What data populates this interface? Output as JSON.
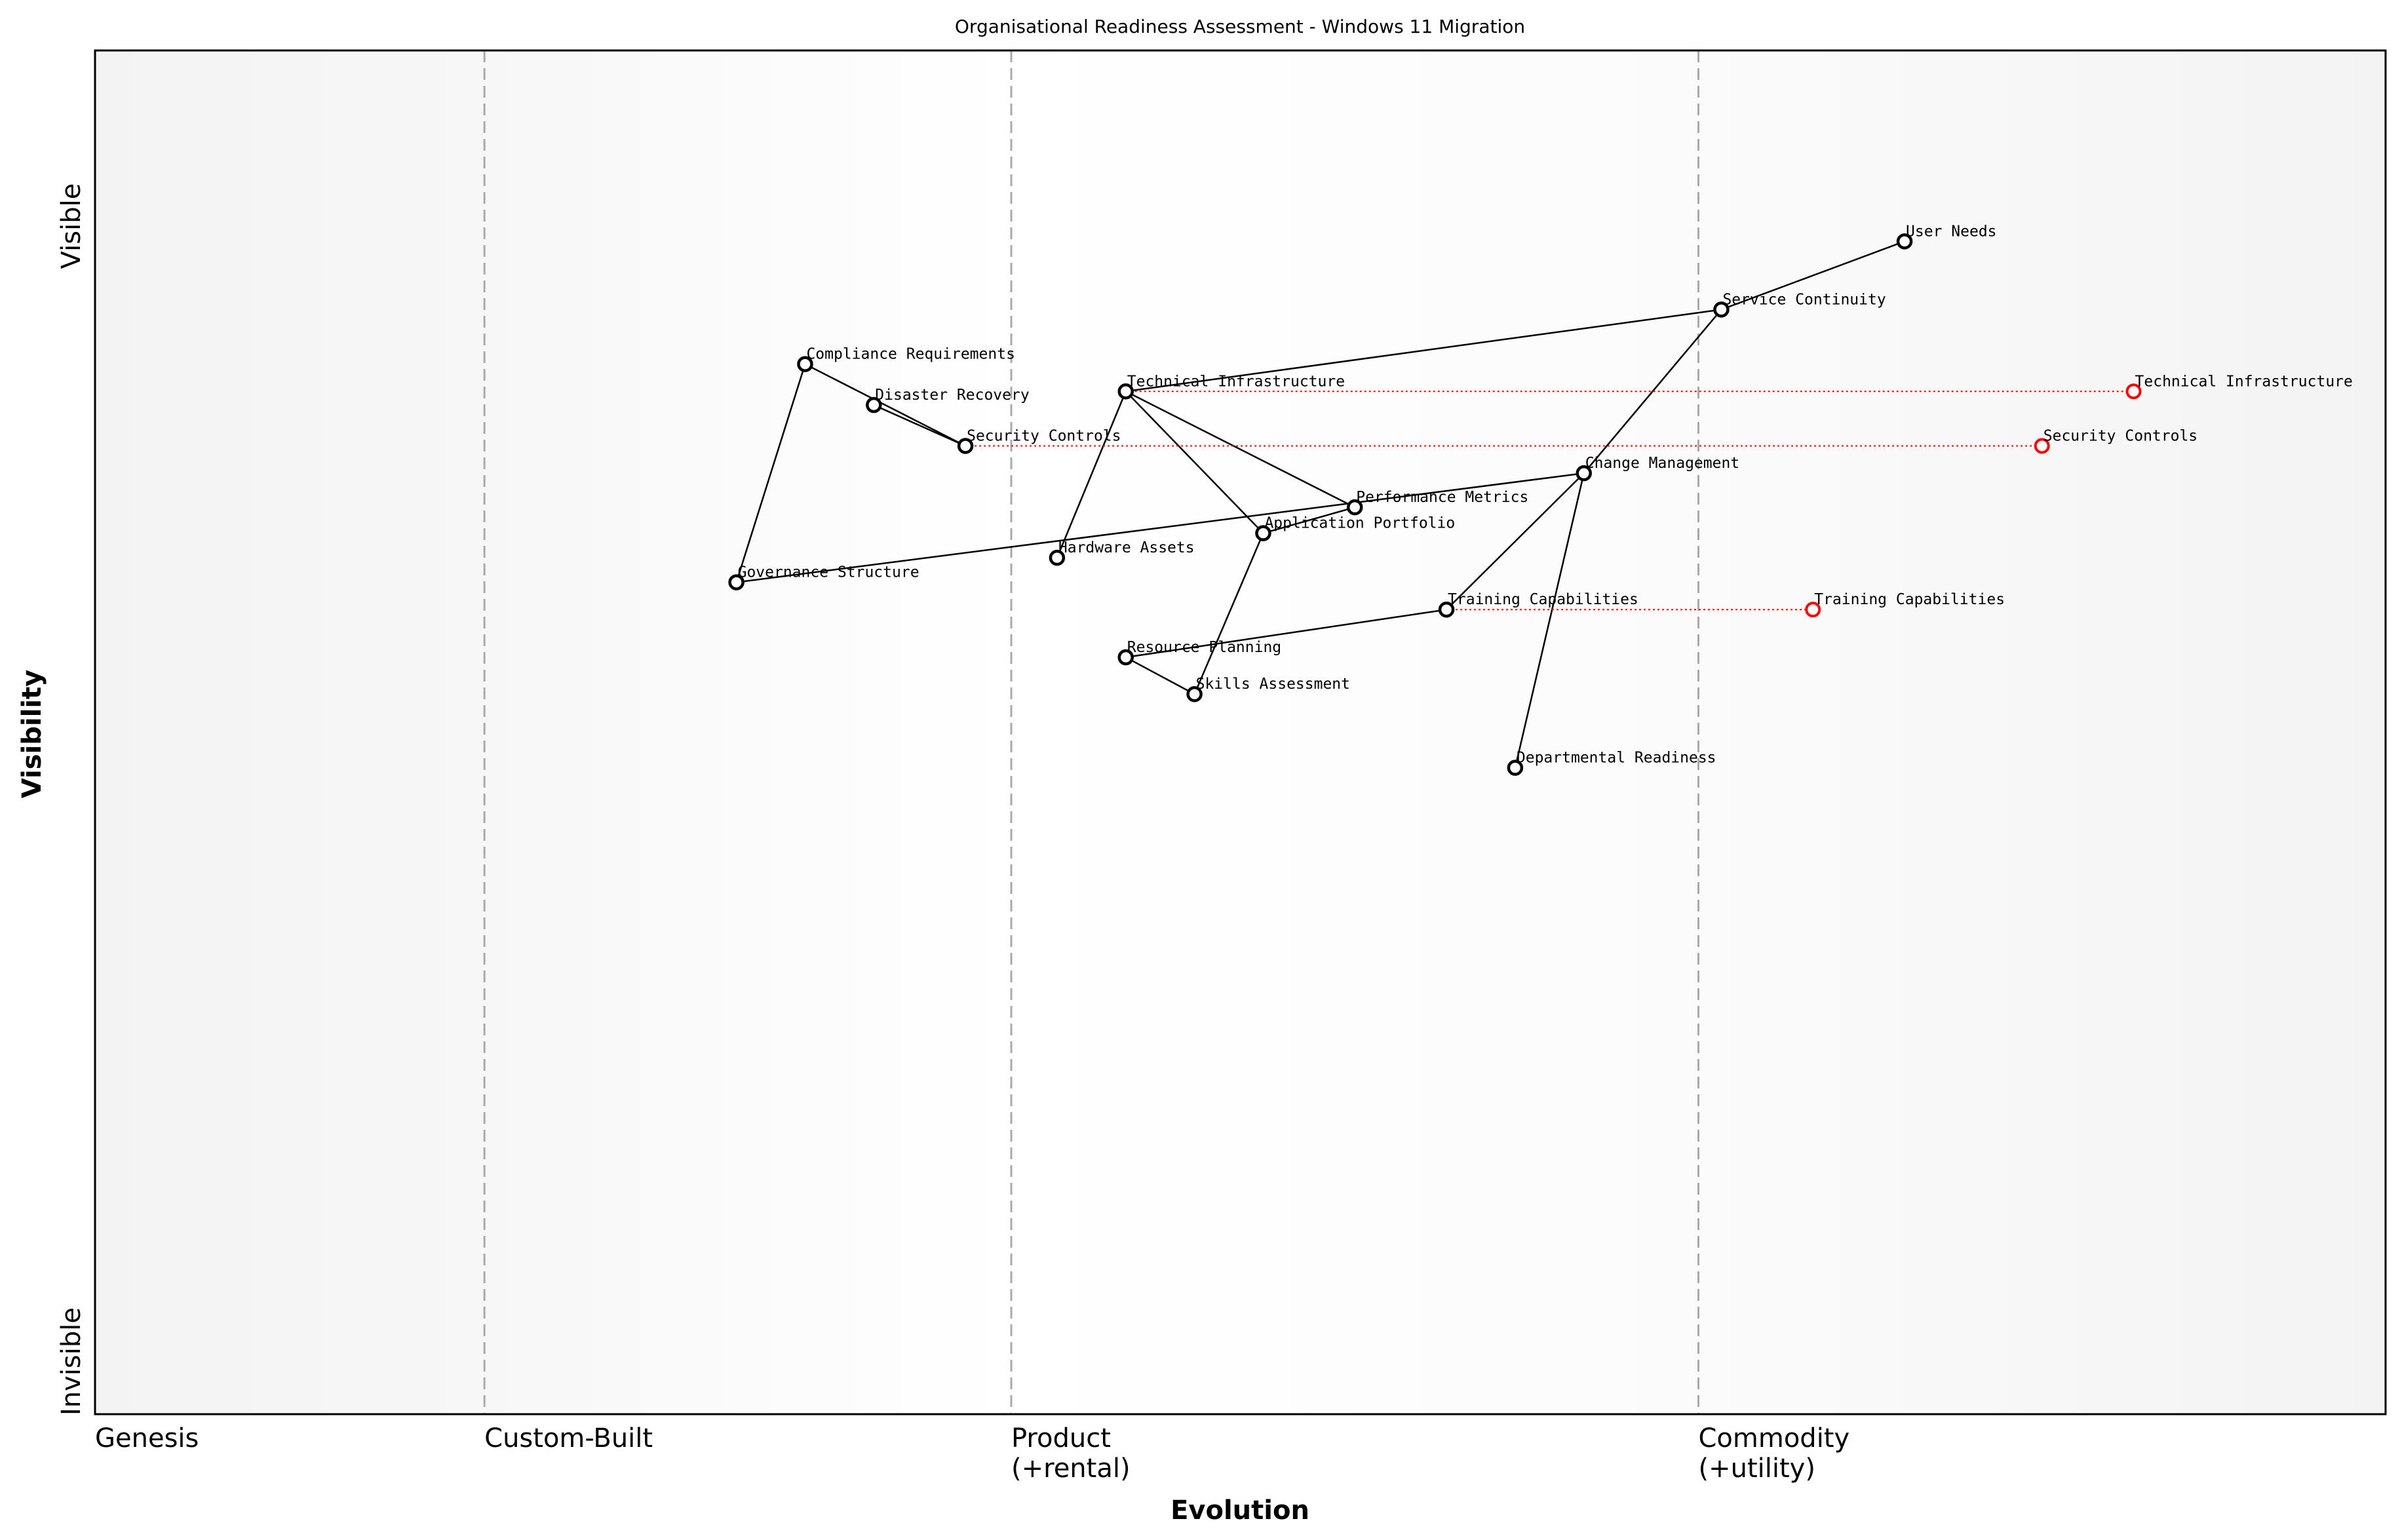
{
  "title": "Organisational Readiness Assessment - Windows 11 Migration",
  "x_axis": {
    "label": "Evolution",
    "stages": [
      {
        "name": "Genesis",
        "at": 0
      },
      {
        "name": "Custom-Built",
        "at": 0.17
      },
      {
        "name": "Product\n(+rental)",
        "at": 0.4
      },
      {
        "name": "Commodity\n(+utility)",
        "at": 0.7
      }
    ]
  },
  "y_axis": {
    "label": "Visibility",
    "top": "Visible",
    "bottom": "Invisible"
  },
  "colors": {
    "component": "#000000",
    "evolved": "#ff0000",
    "stage_line": "#aaaaaa",
    "band": "#f5f5f5"
  },
  "components": [
    {
      "name": "User Needs",
      "evolution": 0.79,
      "visibility": 0.86
    },
    {
      "name": "Service Continuity",
      "evolution": 0.71,
      "visibility": 0.81
    },
    {
      "name": "Compliance Requirements",
      "evolution": 0.31,
      "visibility": 0.77
    },
    {
      "name": "Disaster Recovery",
      "evolution": 0.34,
      "visibility": 0.74
    },
    {
      "name": "Security Controls",
      "evolution": 0.38,
      "visibility": 0.71
    },
    {
      "name": "Technical Infrastructure",
      "evolution": 0.45,
      "visibility": 0.75
    },
    {
      "name": "Change Management",
      "evolution": 0.65,
      "visibility": 0.69
    },
    {
      "name": "Performance Metrics",
      "evolution": 0.55,
      "visibility": 0.665
    },
    {
      "name": "Application Portfolio",
      "evolution": 0.51,
      "visibility": 0.646
    },
    {
      "name": "Hardware Assets",
      "evolution": 0.42,
      "visibility": 0.628
    },
    {
      "name": "Governance Structure",
      "evolution": 0.28,
      "visibility": 0.61
    },
    {
      "name": "Training Capabilities",
      "evolution": 0.59,
      "visibility": 0.59
    },
    {
      "name": "Resource Planning",
      "evolution": 0.45,
      "visibility": 0.555
    },
    {
      "name": "Skills Assessment",
      "evolution": 0.48,
      "visibility": 0.528
    },
    {
      "name": "Departmental Readiness",
      "evolution": 0.62,
      "visibility": 0.474
    }
  ],
  "links": [
    [
      "User Needs",
      "Service Continuity"
    ],
    [
      "Service Continuity",
      "Technical Infrastructure"
    ],
    [
      "Service Continuity",
      "Change Management"
    ],
    [
      "Compliance Requirements",
      "Security Controls"
    ],
    [
      "Disaster Recovery",
      "Security Controls"
    ],
    [
      "Compliance Requirements",
      "Governance Structure"
    ],
    [
      "Technical Infrastructure",
      "Hardware Assets"
    ],
    [
      "Technical Infrastructure",
      "Application Portfolio"
    ],
    [
      "Technical Infrastructure",
      "Performance Metrics"
    ],
    [
      "Governance Structure",
      "Change Management"
    ],
    [
      "Application Portfolio",
      "Performance Metrics"
    ],
    [
      "Change Management",
      "Training Capabilities"
    ],
    [
      "Change Management",
      "Departmental Readiness"
    ],
    [
      "Training Capabilities",
      "Resource Planning"
    ],
    [
      "Resource Planning",
      "Skills Assessment"
    ],
    [
      "Skills Assessment",
      "Application Portfolio"
    ]
  ],
  "evolutions": [
    {
      "name": "Technical Infrastructure",
      "from": 0.45,
      "to": 0.89
    },
    {
      "name": "Security Controls",
      "from": 0.38,
      "to": 0.85
    },
    {
      "name": "Training Capabilities",
      "from": 0.59,
      "to": 0.75
    }
  ]
}
